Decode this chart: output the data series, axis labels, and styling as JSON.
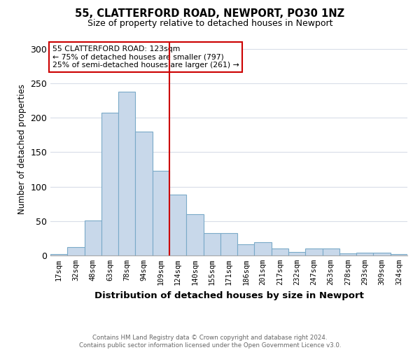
{
  "title": "55, CLATTERFORD ROAD, NEWPORT, PO30 1NZ",
  "subtitle": "Size of property relative to detached houses in Newport",
  "xlabel": "Distribution of detached houses by size in Newport",
  "ylabel": "Number of detached properties",
  "footer_line1": "Contains HM Land Registry data © Crown copyright and database right 2024.",
  "footer_line2": "Contains public sector information licensed under the Open Government Licence v3.0.",
  "annotation_line1": "55 CLATTERFORD ROAD: 123sqm",
  "annotation_line2": "← 75% of detached houses are smaller (797)",
  "annotation_line3": "25% of semi-detached houses are larger (261) →",
  "bin_labels": [
    "17sqm",
    "32sqm",
    "48sqm",
    "63sqm",
    "78sqm",
    "94sqm",
    "109sqm",
    "124sqm",
    "140sqm",
    "155sqm",
    "171sqm",
    "186sqm",
    "201sqm",
    "217sqm",
    "232sqm",
    "247sqm",
    "263sqm",
    "278sqm",
    "293sqm",
    "309sqm",
    "324sqm"
  ],
  "bar_heights": [
    2,
    12,
    51,
    207,
    238,
    180,
    123,
    88,
    60,
    33,
    33,
    16,
    19,
    10,
    5,
    10,
    10,
    3,
    4,
    4,
    2
  ],
  "bar_color": "#c8d8ea",
  "bar_edge_color": "#7aaac8",
  "red_line_x": 6.5,
  "red_line_color": "#cc0000",
  "annotation_box_edge_color": "#cc0000",
  "background_color": "#ffffff",
  "ylim": [
    0,
    310
  ],
  "yticks": [
    0,
    50,
    100,
    150,
    200,
    250,
    300
  ],
  "grid_color": "#d8dde8"
}
